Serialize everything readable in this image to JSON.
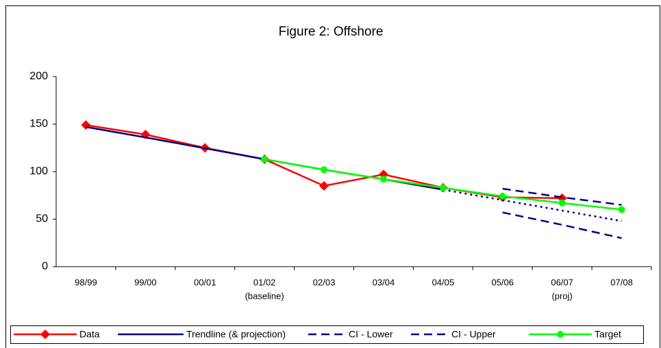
{
  "chart_data": {
    "type": "line",
    "title": "Figure 2: Offshore",
    "categories": [
      "98/99",
      "99/00",
      "00/01",
      "01/02",
      "02/03",
      "03/04",
      "04/05",
      "05/06",
      "06/07",
      "07/08"
    ],
    "category_notes": [
      null,
      null,
      null,
      "(baseline)",
      null,
      null,
      null,
      null,
      "(proj)",
      null
    ],
    "ylim": [
      0,
      200
    ],
    "yticks": [
      0,
      50,
      100,
      150,
      200
    ],
    "series": [
      {
        "name": "Data",
        "color": "#ff0000",
        "marker": "diamond",
        "dash": "solid",
        "values": [
          149,
          139,
          125,
          113,
          85,
          97,
          83,
          73,
          72,
          null
        ]
      },
      {
        "name": "Trendline (& projection)",
        "color": "#000080",
        "marker": "none",
        "dash": "solid",
        "dash_from_index": 6,
        "values": [
          147,
          136,
          124.5,
          113,
          102,
          92,
          81,
          70,
          59,
          48
        ]
      },
      {
        "name": "CI - Lower",
        "color": "#000080",
        "marker": "none",
        "dash": "dashed",
        "values": [
          null,
          null,
          null,
          null,
          null,
          null,
          null,
          57,
          44,
          30
        ]
      },
      {
        "name": "CI - Upper",
        "color": "#000080",
        "marker": "none",
        "dash": "dashed",
        "values": [
          null,
          null,
          null,
          null,
          null,
          null,
          null,
          82,
          73,
          65
        ]
      },
      {
        "name": "Target",
        "color": "#00ff00",
        "marker": "circle",
        "dash": "solid",
        "values": [
          null,
          null,
          null,
          113,
          102,
          92,
          83,
          74,
          67,
          60
        ]
      }
    ]
  }
}
